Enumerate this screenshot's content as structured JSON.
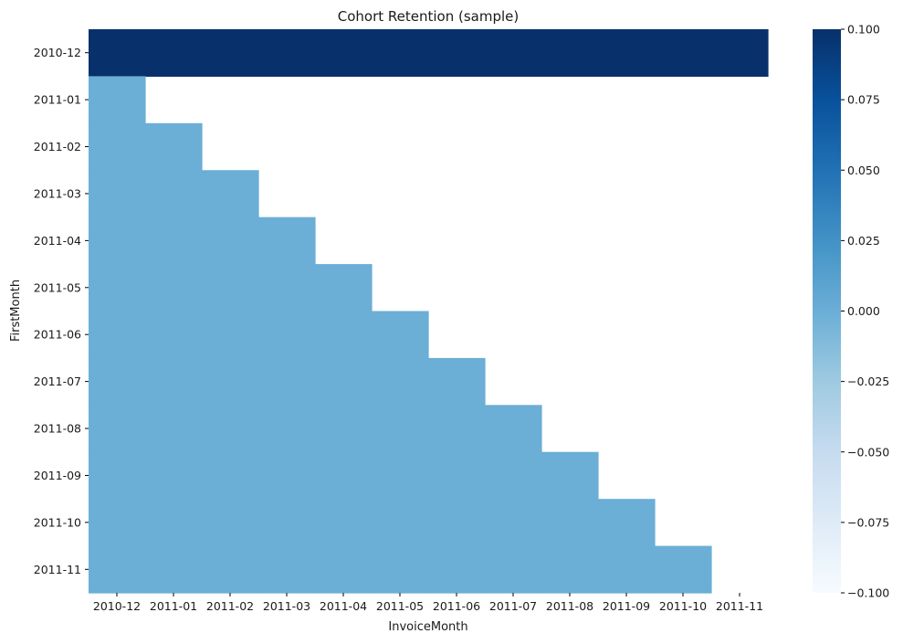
{
  "chart_data": {
    "type": "heatmap",
    "title": "Cohort Retention (sample)",
    "xlabel": "InvoiceMonth",
    "ylabel": "FirstMonth",
    "x_categories": [
      "2010-12",
      "2011-01",
      "2011-02",
      "2011-03",
      "2011-04",
      "2011-05",
      "2011-06",
      "2011-07",
      "2011-08",
      "2011-09",
      "2011-10",
      "2011-11"
    ],
    "y_categories": [
      "2010-12",
      "2011-01",
      "2011-02",
      "2011-03",
      "2011-04",
      "2011-05",
      "2011-06",
      "2011-07",
      "2011-08",
      "2011-09",
      "2011-10",
      "2011-11"
    ],
    "values": [
      [
        0.1,
        0.1,
        0.1,
        0.1,
        0.1,
        0.1,
        0.1,
        0.1,
        0.1,
        0.1,
        0.1,
        0.1
      ],
      [
        0,
        null,
        null,
        null,
        null,
        null,
        null,
        null,
        null,
        null,
        null,
        null
      ],
      [
        0,
        0,
        null,
        null,
        null,
        null,
        null,
        null,
        null,
        null,
        null,
        null
      ],
      [
        0,
        0,
        0,
        null,
        null,
        null,
        null,
        null,
        null,
        null,
        null,
        null
      ],
      [
        0,
        0,
        0,
        0,
        null,
        null,
        null,
        null,
        null,
        null,
        null,
        null
      ],
      [
        0,
        0,
        0,
        0,
        0,
        null,
        null,
        null,
        null,
        null,
        null,
        null
      ],
      [
        0,
        0,
        0,
        0,
        0,
        0,
        null,
        null,
        null,
        null,
        null,
        null
      ],
      [
        0,
        0,
        0,
        0,
        0,
        0,
        0,
        null,
        null,
        null,
        null,
        null
      ],
      [
        0,
        0,
        0,
        0,
        0,
        0,
        0,
        0,
        null,
        null,
        null,
        null
      ],
      [
        0,
        0,
        0,
        0,
        0,
        0,
        0,
        0,
        0,
        null,
        null,
        null
      ],
      [
        0,
        0,
        0,
        0,
        0,
        0,
        0,
        0,
        0,
        0,
        null,
        null
      ],
      [
        0,
        0,
        0,
        0,
        0,
        0,
        0,
        0,
        0,
        0,
        0,
        null
      ]
    ],
    "colorbar": {
      "min": -0.1,
      "max": 0.1,
      "ticks": [
        0.1,
        0.075,
        0.05,
        0.025,
        0.0,
        -0.025,
        -0.05,
        -0.075,
        -0.1
      ],
      "tick_labels": [
        "0.100",
        "0.075",
        "0.050",
        "0.025",
        "0.000",
        "−0.025",
        "−0.050",
        "−0.075",
        "−0.100"
      ],
      "colormap": "Blues"
    }
  }
}
